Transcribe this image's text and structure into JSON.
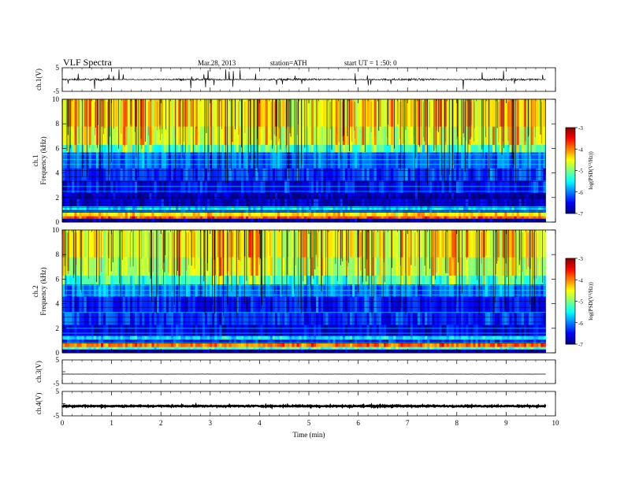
{
  "header": {
    "title": "VLF  Spectra",
    "date": "Mar.28, 2013",
    "station": "station=ATH",
    "start": "start  UT  =   1 :50: 0"
  },
  "chart_data": [
    {
      "type": "line",
      "id": "ch1",
      "ylabel": "ch.1(V)",
      "ylim": [
        -5,
        5
      ],
      "yticks": [
        "5",
        "-5"
      ],
      "baseline": 0.0,
      "noise": 0.28,
      "spikes": true,
      "xlim": [
        0,
        10
      ],
      "data_end": 9.8
    },
    {
      "type": "heatmap",
      "id": "ch1-spectrogram",
      "ylabel": "ch.1\nFrequency  (kHz)",
      "ylabel_lines": [
        "ch.1",
        "Frequency  (kHz)"
      ],
      "ylim": [
        0,
        10
      ],
      "yticks": [
        "0",
        "2",
        "4",
        "6",
        "8",
        "10"
      ],
      "xlim": [
        0,
        10
      ],
      "data_end": 9.8,
      "colorbar": {
        "label": "log(PSD(V²/Hz))",
        "ticks": [
          "-3",
          "-4",
          "-5",
          "-6",
          "-7"
        ],
        "range": [
          -7,
          -3
        ]
      },
      "bands_log_psd": [
        {
          "f": [
            0.0,
            0.3
          ],
          "v": -6.9
        },
        {
          "f": [
            0.3,
            0.5
          ],
          "v": -3.8
        },
        {
          "f": [
            0.5,
            0.8
          ],
          "v": -4.4
        },
        {
          "f": [
            0.8,
            1.0
          ],
          "v": -6.6
        },
        {
          "f": [
            1.0,
            1.3
          ],
          "v": -5.6
        },
        {
          "f": [
            1.3,
            1.9
          ],
          "v": -6.7
        },
        {
          "f": [
            1.9,
            2.4
          ],
          "v": -6.8
        },
        {
          "f": [
            2.4,
            3.4
          ],
          "v": -6.5
        },
        {
          "f": [
            3.4,
            4.4
          ],
          "v": -6.3
        },
        {
          "f": [
            4.4,
            5.7
          ],
          "v": -6.1
        },
        {
          "f": [
            5.7,
            6.3
          ],
          "v": -5.3
        },
        {
          "f": [
            6.3,
            7.8
          ],
          "v": -4.7
        },
        {
          "f": [
            7.8,
            10.0
          ],
          "v": -4.5
        }
      ]
    },
    {
      "type": "heatmap",
      "id": "ch2-spectrogram",
      "ylabel": "ch.2\nFrequency  (kHz)",
      "ylabel_lines": [
        "ch.2",
        "Frequency  (kHz)"
      ],
      "ylim": [
        0,
        10
      ],
      "yticks": [
        "0",
        "2",
        "4",
        "6",
        "8",
        "10"
      ],
      "xlim": [
        0,
        10
      ],
      "data_end": 9.8,
      "colorbar": {
        "label": "log(PSD(V²/Hz))",
        "ticks": [
          "-3",
          "-4",
          "-5",
          "-6",
          "-7"
        ],
        "range": [
          -7,
          -3
        ]
      },
      "bands_log_psd": [
        {
          "f": [
            0.0,
            0.3
          ],
          "v": -6.9
        },
        {
          "f": [
            0.3,
            0.5
          ],
          "v": -5.2
        },
        {
          "f": [
            0.5,
            0.8
          ],
          "v": -3.9
        },
        {
          "f": [
            0.8,
            1.1
          ],
          "v": -6.5
        },
        {
          "f": [
            1.1,
            1.4
          ],
          "v": -5.6
        },
        {
          "f": [
            1.4,
            2.3
          ],
          "v": -6.6
        },
        {
          "f": [
            2.3,
            3.3
          ],
          "v": -6.3
        },
        {
          "f": [
            3.3,
            4.6
          ],
          "v": -6.4
        },
        {
          "f": [
            4.6,
            5.6
          ],
          "v": -6.0
        },
        {
          "f": [
            5.6,
            6.3
          ],
          "v": -5.3
        },
        {
          "f": [
            6.3,
            7.8
          ],
          "v": -4.8
        },
        {
          "f": [
            7.8,
            10.0
          ],
          "v": -4.6
        }
      ]
    },
    {
      "type": "line",
      "id": "ch3",
      "ylabel": "ch.3(V)",
      "ylim": [
        -5,
        5
      ],
      "yticks": [
        "5",
        "-5"
      ],
      "baseline": -1.0,
      "noise": 0.03,
      "spikes": false,
      "xlim": [
        0,
        10
      ],
      "data_end": 9.8
    },
    {
      "type": "line",
      "id": "ch4",
      "ylabel": "ch.4(V)",
      "ylim": [
        -5,
        5
      ],
      "yticks": [
        "5",
        "-5"
      ],
      "baseline": -1.0,
      "noise": 0.22,
      "spikes": false,
      "xlim": [
        0,
        10
      ],
      "data_end": 9.8,
      "xlabel": "Time  (min)",
      "xticks": [
        "0",
        "1",
        "2",
        "3",
        "4",
        "5",
        "6",
        "7",
        "8",
        "9",
        "10"
      ]
    }
  ]
}
